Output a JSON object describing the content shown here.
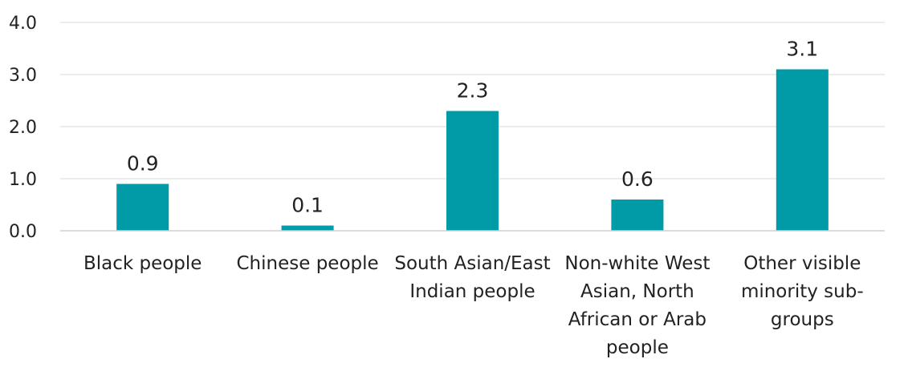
{
  "chart_data": {
    "type": "bar",
    "categories": [
      [
        "Black people"
      ],
      [
        "Chinese people"
      ],
      [
        "South Asian/East",
        "Indian people"
      ],
      [
        "Non-white West",
        "Asian, North",
        "African or Arab",
        "people"
      ],
      [
        "Other visible",
        "minority sub-",
        "groups"
      ]
    ],
    "values": [
      0.9,
      0.1,
      2.3,
      0.6,
      3.1
    ],
    "value_labels": [
      "0.9",
      "0.1",
      "2.3",
      "0.6",
      "3.1"
    ],
    "yticks": [
      "0.0",
      "1.0",
      "2.0",
      "3.0",
      "4.0"
    ],
    "ylim": [
      0,
      4
    ],
    "grid": true,
    "bar_color": "#009ba6"
  }
}
